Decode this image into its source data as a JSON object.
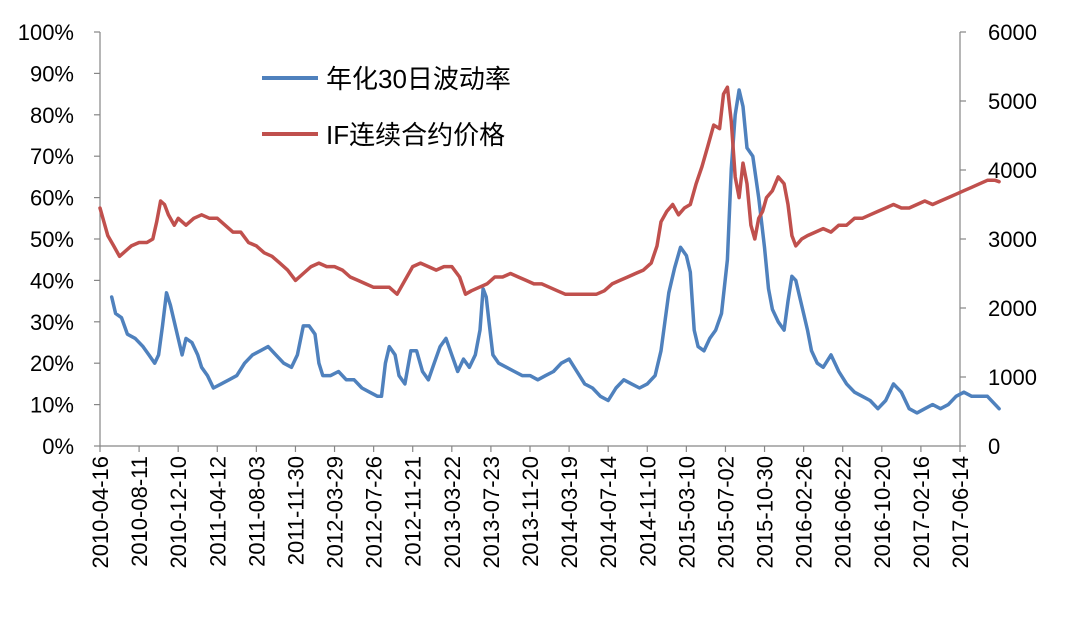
{
  "chart_data": {
    "type": "line",
    "title": "",
    "xlabel": "",
    "ylabel": "",
    "ylabel_right": "",
    "legend_position": "top-left",
    "grid": false,
    "ylim": [
      0,
      100
    ],
    "ylim_right": [
      0,
      6000
    ],
    "y_ticks": [
      "0%",
      "10%",
      "20%",
      "30%",
      "40%",
      "50%",
      "60%",
      "70%",
      "80%",
      "90%",
      "100%"
    ],
    "y_ticks_right": [
      "0",
      "1000",
      "2000",
      "3000",
      "4000",
      "5000",
      "6000"
    ],
    "x_ticks": [
      "2010-04-16",
      "2010-08-11",
      "2010-12-10",
      "2011-04-12",
      "2011-08-03",
      "2011-11-30",
      "2012-03-29",
      "2012-07-26",
      "2012-11-21",
      "2013-03-22",
      "2013-07-23",
      "2013-11-20",
      "2014-03-19",
      "2014-07-14",
      "2014-11-10",
      "2015-03-10",
      "2015-07-02",
      "2015-10-30",
      "2016-02-26",
      "2016-06-22",
      "2016-10-20",
      "2017-02-16",
      "2017-06-14"
    ],
    "series": [
      {
        "name": "年化30日波动率",
        "axis": "left",
        "unit": "%",
        "color": "#4F81BD",
        "points": [
          [
            0.3,
            36
          ],
          [
            0.4,
            32
          ],
          [
            0.55,
            31
          ],
          [
            0.7,
            27
          ],
          [
            0.9,
            26
          ],
          [
            1.1,
            24
          ],
          [
            1.25,
            22
          ],
          [
            1.4,
            20
          ],
          [
            1.5,
            22
          ],
          [
            1.6,
            29
          ],
          [
            1.7,
            37
          ],
          [
            1.8,
            34
          ],
          [
            1.9,
            30
          ],
          [
            2.0,
            26
          ],
          [
            2.1,
            22
          ],
          [
            2.2,
            26
          ],
          [
            2.35,
            25
          ],
          [
            2.5,
            22
          ],
          [
            2.6,
            19
          ],
          [
            2.75,
            17
          ],
          [
            2.9,
            14
          ],
          [
            3.1,
            15
          ],
          [
            3.3,
            16
          ],
          [
            3.5,
            17
          ],
          [
            3.7,
            20
          ],
          [
            3.9,
            22
          ],
          [
            4.1,
            23
          ],
          [
            4.3,
            24
          ],
          [
            4.5,
            22
          ],
          [
            4.7,
            20
          ],
          [
            4.9,
            19
          ],
          [
            5.05,
            22
          ],
          [
            5.2,
            29
          ],
          [
            5.35,
            29
          ],
          [
            5.5,
            27
          ],
          [
            5.6,
            20
          ],
          [
            5.7,
            17
          ],
          [
            5.9,
            17
          ],
          [
            6.1,
            18
          ],
          [
            6.3,
            16
          ],
          [
            6.5,
            16
          ],
          [
            6.7,
            14
          ],
          [
            6.9,
            13
          ],
          [
            7.1,
            12
          ],
          [
            7.2,
            12
          ],
          [
            7.3,
            20
          ],
          [
            7.4,
            24
          ],
          [
            7.55,
            22
          ],
          [
            7.65,
            17
          ],
          [
            7.8,
            15
          ],
          [
            7.95,
            23
          ],
          [
            8.1,
            23
          ],
          [
            8.25,
            18
          ],
          [
            8.4,
            16
          ],
          [
            8.55,
            20
          ],
          [
            8.7,
            24
          ],
          [
            8.85,
            26
          ],
          [
            9.0,
            22
          ],
          [
            9.15,
            18
          ],
          [
            9.3,
            21
          ],
          [
            9.45,
            19
          ],
          [
            9.6,
            22
          ],
          [
            9.72,
            28
          ],
          [
            9.8,
            38
          ],
          [
            9.88,
            36
          ],
          [
            9.95,
            30
          ],
          [
            10.05,
            22
          ],
          [
            10.2,
            20
          ],
          [
            10.4,
            19
          ],
          [
            10.6,
            18
          ],
          [
            10.8,
            17
          ],
          [
            11.0,
            17
          ],
          [
            11.2,
            16
          ],
          [
            11.4,
            17
          ],
          [
            11.6,
            18
          ],
          [
            11.8,
            20
          ],
          [
            12.0,
            21
          ],
          [
            12.2,
            18
          ],
          [
            12.4,
            15
          ],
          [
            12.6,
            14
          ],
          [
            12.8,
            12
          ],
          [
            13.0,
            11
          ],
          [
            13.2,
            14
          ],
          [
            13.4,
            16
          ],
          [
            13.6,
            15
          ],
          [
            13.8,
            14
          ],
          [
            14.0,
            15
          ],
          [
            14.2,
            17
          ],
          [
            14.35,
            23
          ],
          [
            14.45,
            30
          ],
          [
            14.55,
            37
          ],
          [
            14.7,
            43
          ],
          [
            14.85,
            48
          ],
          [
            15.0,
            46
          ],
          [
            15.1,
            42
          ],
          [
            15.2,
            28
          ],
          [
            15.3,
            24
          ],
          [
            15.45,
            23
          ],
          [
            15.6,
            26
          ],
          [
            15.75,
            28
          ],
          [
            15.9,
            32
          ],
          [
            16.05,
            45
          ],
          [
            16.15,
            67
          ],
          [
            16.25,
            80
          ],
          [
            16.35,
            86
          ],
          [
            16.45,
            82
          ],
          [
            16.55,
            72
          ],
          [
            16.7,
            70
          ],
          [
            16.85,
            60
          ],
          [
            17.0,
            48
          ],
          [
            17.1,
            38
          ],
          [
            17.2,
            33
          ],
          [
            17.35,
            30
          ],
          [
            17.5,
            28
          ],
          [
            17.6,
            35
          ],
          [
            17.7,
            41
          ],
          [
            17.8,
            40
          ],
          [
            17.9,
            36
          ],
          [
            18.0,
            32
          ],
          [
            18.1,
            28
          ],
          [
            18.2,
            23
          ],
          [
            18.35,
            20
          ],
          [
            18.5,
            19
          ],
          [
            18.7,
            22
          ],
          [
            18.9,
            18
          ],
          [
            19.1,
            15
          ],
          [
            19.3,
            13
          ],
          [
            19.5,
            12
          ],
          [
            19.7,
            11
          ],
          [
            19.9,
            9
          ],
          [
            20.1,
            11
          ],
          [
            20.3,
            15
          ],
          [
            20.5,
            13
          ],
          [
            20.7,
            9
          ],
          [
            20.9,
            8
          ],
          [
            21.1,
            9
          ],
          [
            21.3,
            10
          ],
          [
            21.5,
            9
          ],
          [
            21.7,
            10
          ],
          [
            21.9,
            12
          ],
          [
            22.1,
            13
          ],
          [
            22.3,
            12
          ],
          [
            22.5,
            12
          ],
          [
            22.7,
            12
          ],
          [
            22.9,
            10
          ],
          [
            23.0,
            9
          ]
        ]
      },
      {
        "name": "IF连续合约价格",
        "axis": "right",
        "unit": "",
        "color": "#C0504D",
        "points": [
          [
            0.0,
            3450
          ],
          [
            0.1,
            3250
          ],
          [
            0.2,
            3050
          ],
          [
            0.35,
            2900
          ],
          [
            0.5,
            2750
          ],
          [
            0.6,
            2800
          ],
          [
            0.8,
            2900
          ],
          [
            1.0,
            2950
          ],
          [
            1.2,
            2950
          ],
          [
            1.35,
            3000
          ],
          [
            1.45,
            3250
          ],
          [
            1.55,
            3550
          ],
          [
            1.65,
            3500
          ],
          [
            1.75,
            3350
          ],
          [
            1.9,
            3200
          ],
          [
            2.0,
            3300
          ],
          [
            2.2,
            3200
          ],
          [
            2.4,
            3300
          ],
          [
            2.6,
            3350
          ],
          [
            2.8,
            3300
          ],
          [
            3.0,
            3300
          ],
          [
            3.2,
            3200
          ],
          [
            3.4,
            3100
          ],
          [
            3.6,
            3100
          ],
          [
            3.8,
            2950
          ],
          [
            4.0,
            2900
          ],
          [
            4.2,
            2800
          ],
          [
            4.4,
            2750
          ],
          [
            4.6,
            2650
          ],
          [
            4.8,
            2550
          ],
          [
            5.0,
            2400
          ],
          [
            5.2,
            2500
          ],
          [
            5.4,
            2600
          ],
          [
            5.6,
            2650
          ],
          [
            5.8,
            2600
          ],
          [
            6.0,
            2600
          ],
          [
            6.2,
            2550
          ],
          [
            6.4,
            2450
          ],
          [
            6.6,
            2400
          ],
          [
            6.8,
            2350
          ],
          [
            7.0,
            2300
          ],
          [
            7.2,
            2300
          ],
          [
            7.4,
            2300
          ],
          [
            7.6,
            2200
          ],
          [
            7.8,
            2400
          ],
          [
            8.0,
            2600
          ],
          [
            8.2,
            2650
          ],
          [
            8.4,
            2600
          ],
          [
            8.6,
            2550
          ],
          [
            8.8,
            2600
          ],
          [
            9.0,
            2600
          ],
          [
            9.2,
            2450
          ],
          [
            9.35,
            2200
          ],
          [
            9.5,
            2250
          ],
          [
            9.7,
            2300
          ],
          [
            9.9,
            2350
          ],
          [
            10.1,
            2450
          ],
          [
            10.3,
            2450
          ],
          [
            10.5,
            2500
          ],
          [
            10.7,
            2450
          ],
          [
            10.9,
            2400
          ],
          [
            11.1,
            2350
          ],
          [
            11.3,
            2350
          ],
          [
            11.5,
            2300
          ],
          [
            11.7,
            2250
          ],
          [
            11.9,
            2200
          ],
          [
            12.1,
            2200
          ],
          [
            12.3,
            2200
          ],
          [
            12.5,
            2200
          ],
          [
            12.7,
            2200
          ],
          [
            12.9,
            2250
          ],
          [
            13.1,
            2350
          ],
          [
            13.3,
            2400
          ],
          [
            13.5,
            2450
          ],
          [
            13.7,
            2500
          ],
          [
            13.9,
            2550
          ],
          [
            14.1,
            2650
          ],
          [
            14.25,
            2900
          ],
          [
            14.35,
            3250
          ],
          [
            14.5,
            3400
          ],
          [
            14.65,
            3500
          ],
          [
            14.8,
            3350
          ],
          [
            14.95,
            3450
          ],
          [
            15.1,
            3500
          ],
          [
            15.25,
            3800
          ],
          [
            15.4,
            4050
          ],
          [
            15.55,
            4350
          ],
          [
            15.7,
            4650
          ],
          [
            15.85,
            4600
          ],
          [
            15.95,
            5100
          ],
          [
            16.05,
            5200
          ],
          [
            16.15,
            4700
          ],
          [
            16.25,
            3900
          ],
          [
            16.35,
            3600
          ],
          [
            16.45,
            4100
          ],
          [
            16.55,
            3800
          ],
          [
            16.65,
            3200
          ],
          [
            16.75,
            3000
          ],
          [
            16.85,
            3300
          ],
          [
            16.95,
            3400
          ],
          [
            17.05,
            3600
          ],
          [
            17.2,
            3700
          ],
          [
            17.35,
            3900
          ],
          [
            17.5,
            3800
          ],
          [
            17.6,
            3500
          ],
          [
            17.7,
            3050
          ],
          [
            17.8,
            2900
          ],
          [
            17.95,
            3000
          ],
          [
            18.1,
            3050
          ],
          [
            18.3,
            3100
          ],
          [
            18.5,
            3150
          ],
          [
            18.7,
            3100
          ],
          [
            18.9,
            3200
          ],
          [
            19.1,
            3200
          ],
          [
            19.3,
            3300
          ],
          [
            19.5,
            3300
          ],
          [
            19.7,
            3350
          ],
          [
            19.9,
            3400
          ],
          [
            20.1,
            3450
          ],
          [
            20.3,
            3500
          ],
          [
            20.5,
            3450
          ],
          [
            20.7,
            3450
          ],
          [
            20.9,
            3500
          ],
          [
            21.1,
            3550
          ],
          [
            21.3,
            3500
          ],
          [
            21.5,
            3550
          ],
          [
            21.7,
            3600
          ],
          [
            21.9,
            3650
          ],
          [
            22.1,
            3700
          ],
          [
            22.3,
            3750
          ],
          [
            22.5,
            3800
          ],
          [
            22.7,
            3850
          ],
          [
            22.9,
            3850
          ],
          [
            23.0,
            3830
          ]
        ]
      }
    ]
  }
}
